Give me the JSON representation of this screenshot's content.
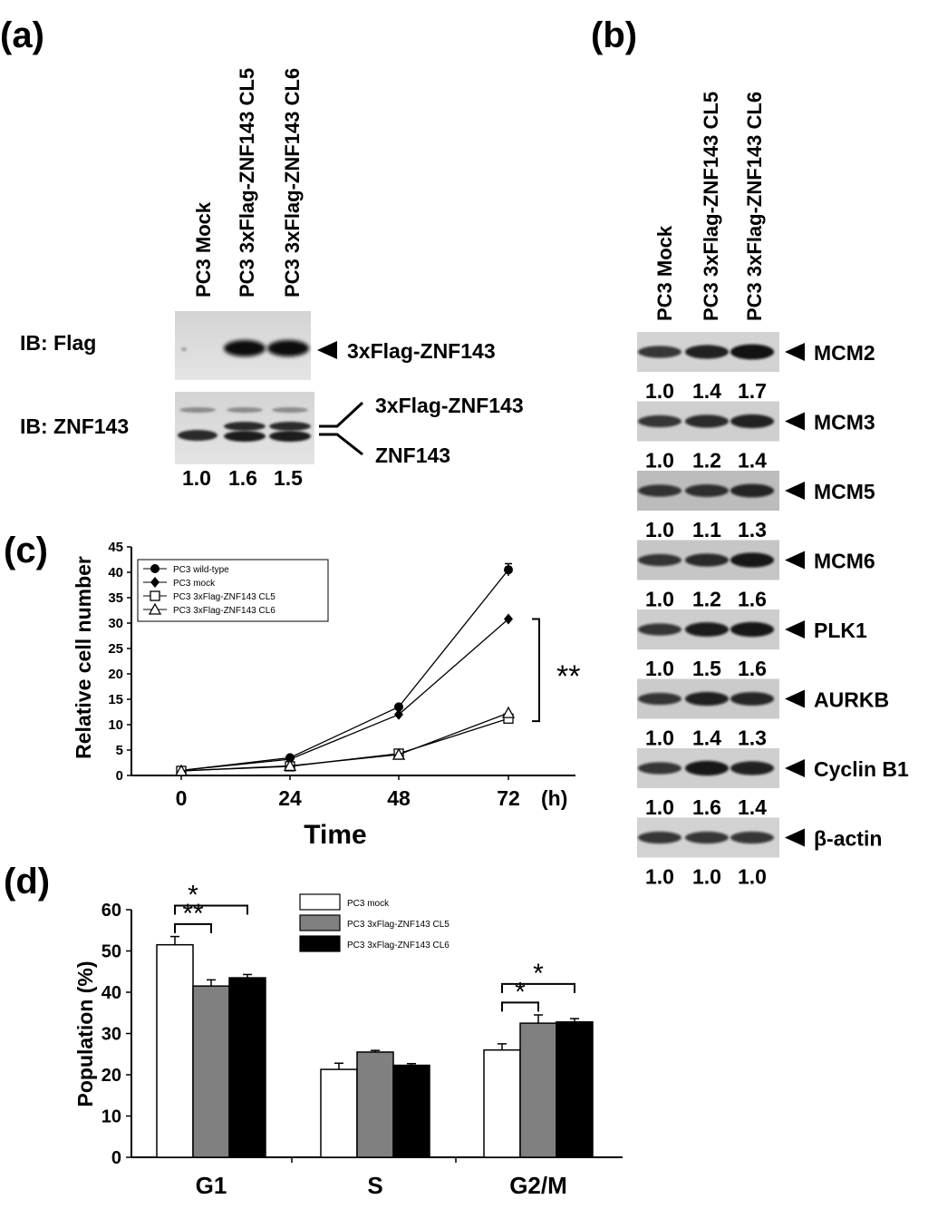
{
  "panel_a": {
    "label": "(a)",
    "lanes": [
      "PC3 Mock",
      "PC3 3xFlag-ZNF143 CL5",
      "PC3 3xFlag-ZNF143 CL6"
    ],
    "blot_flag_label": "IB: Flag",
    "blot_znf_label": "IB: ZNF143",
    "flag_band": "3xFlag-ZNF143",
    "znf_band_upper": "3xFlag-ZNF143",
    "znf_band_lower": "ZNF143",
    "quant": [
      "1.0",
      "1.6",
      "1.5"
    ]
  },
  "panel_b": {
    "label": "(b)",
    "lanes": [
      "PC3 Mock",
      "PC3 3xFlag-ZNF143 CL5",
      "PC3 3xFlag-ZNF143 CL6"
    ],
    "blots": [
      {
        "name": "MCM2",
        "values": [
          "1.0",
          "1.4",
          "1.7"
        ]
      },
      {
        "name": "MCM3",
        "values": [
          "1.0",
          "1.2",
          "1.4"
        ]
      },
      {
        "name": "MCM5",
        "values": [
          "1.0",
          "1.1",
          "1.3"
        ]
      },
      {
        "name": "MCM6",
        "values": [
          "1.0",
          "1.2",
          "1.6"
        ]
      },
      {
        "name": "PLK1",
        "values": [
          "1.0",
          "1.5",
          "1.6"
        ]
      },
      {
        "name": "AURKB",
        "values": [
          "1.0",
          "1.4",
          "1.3"
        ]
      },
      {
        "name": "Cyclin B1",
        "values": [
          "1.0",
          "1.6",
          "1.4"
        ]
      },
      {
        "name": "β-actin",
        "values": [
          "1.0",
          "1.0",
          "1.0"
        ]
      }
    ]
  },
  "chart_data": [
    {
      "panel": "(c)",
      "type": "line",
      "xlabel": "Time",
      "xunit": "(h)",
      "ylabel": "Relative cell number",
      "x": [
        0,
        24,
        48,
        72
      ],
      "xticks": [
        "0",
        "24",
        "48",
        "72"
      ],
      "ylim": [
        0,
        45
      ],
      "yticks": [
        0,
        5,
        10,
        15,
        20,
        25,
        30,
        35,
        40,
        45
      ],
      "series": [
        {
          "name": "PC3 wild-type",
          "values": [
            1.0,
            3.5,
            13.5,
            40.5
          ],
          "errors": [
            0,
            0,
            0,
            1.2
          ],
          "marker": "filled-circle"
        },
        {
          "name": "PC3 mock",
          "values": [
            1.0,
            3.2,
            12.0,
            30.8
          ],
          "errors": [
            0,
            0,
            0,
            0
          ],
          "marker": "filled-diamond"
        },
        {
          "name": "PC3 3xFlag-ZNF143 CL5",
          "values": [
            0.9,
            1.8,
            4.3,
            11.2
          ],
          "errors": [
            0,
            0,
            0,
            0
          ],
          "marker": "open-square"
        },
        {
          "name": "PC3 3xFlag-ZNF143 CL6",
          "values": [
            0.9,
            1.9,
            4.1,
            12.3
          ],
          "errors": [
            0,
            0,
            0,
            0
          ],
          "marker": "open-triangle"
        }
      ],
      "annotation": "**",
      "legend": "top-left",
      "grid": false
    },
    {
      "panel": "(d)",
      "type": "bar",
      "ylabel": "Population (%)",
      "categories": [
        "G1",
        "S",
        "G2/M"
      ],
      "ylim": [
        0,
        60
      ],
      "yticks": [
        0,
        10,
        20,
        30,
        40,
        50,
        60
      ],
      "series": [
        {
          "name": "PC3 mock",
          "values": [
            51.5,
            21.3,
            26.0
          ],
          "errors": [
            2.0,
            1.5,
            1.5
          ],
          "color": "#ffffff"
        },
        {
          "name": "PC3 3xFlag-ZNF143 CL5",
          "values": [
            41.5,
            25.5,
            32.5
          ],
          "errors": [
            1.5,
            0.4,
            2.0
          ],
          "color": "#808080"
        },
        {
          "name": "PC3 3xFlag-ZNF143 CL6",
          "values": [
            43.5,
            22.3,
            32.8
          ],
          "errors": [
            0.8,
            0.4,
            0.8
          ],
          "color": "#000000"
        }
      ],
      "significance": [
        {
          "category": "G1",
          "a": 0,
          "b": 2,
          "label": "*",
          "level": "upper"
        },
        {
          "category": "G1",
          "a": 0,
          "b": 1,
          "label": "**",
          "level": "lower"
        },
        {
          "category": "G2/M",
          "a": 0,
          "b": 2,
          "label": "*",
          "level": "upper"
        },
        {
          "category": "G2/M",
          "a": 0,
          "b": 1,
          "label": "*",
          "level": "lower"
        }
      ],
      "legend": "top-right",
      "grid": false
    }
  ]
}
